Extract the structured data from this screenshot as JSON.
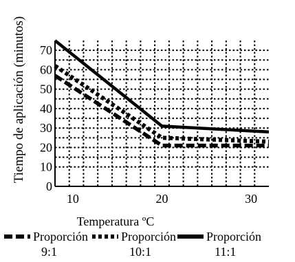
{
  "chart_data": {
    "type": "line",
    "title": "",
    "xlabel": "Temperatura ºC",
    "ylabel": "Tiempo de aplicación (minutos)",
    "xlim": [
      8,
      32
    ],
    "ylim": [
      0,
      75
    ],
    "xticks": [
      10,
      20,
      30
    ],
    "yticks": [
      0,
      10,
      20,
      30,
      40,
      50,
      60,
      70
    ],
    "grid": true,
    "legend_position": "bottom",
    "series": [
      {
        "name": "Proporción 9:1",
        "legend_lines": [
          "Proporción",
          "9:1"
        ],
        "style": "long-dash",
        "color": "#000000",
        "x": [
          8,
          20,
          32
        ],
        "y": [
          57,
          21,
          21
        ]
      },
      {
        "name": "Proporción 10:1",
        "legend_lines": [
          "Proporción",
          "10:1"
        ],
        "style": "short-dash",
        "color": "#000000",
        "x": [
          8,
          20,
          32
        ],
        "y": [
          62,
          25,
          23
        ]
      },
      {
        "name": "Proporción 11:1",
        "legend_lines": [
          "Proporción",
          "11:1"
        ],
        "style": "solid",
        "color": "#000000",
        "x": [
          8,
          20,
          32
        ],
        "y": [
          75,
          31,
          28
        ]
      }
    ]
  }
}
